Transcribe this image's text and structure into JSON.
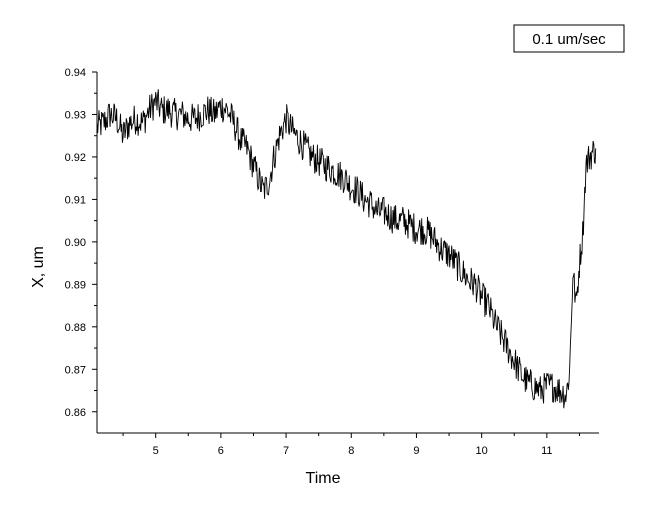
{
  "chart_data": {
    "type": "line",
    "title": "",
    "xlabel": "Time",
    "ylabel": "X, um",
    "xlim": [
      4.1,
      11.8
    ],
    "ylim": [
      0.855,
      0.94
    ],
    "x_ticks": [
      5,
      6,
      7,
      8,
      9,
      10,
      11
    ],
    "x_tick_labels": [
      "5",
      "6",
      "7",
      "8",
      "9",
      "10",
      "11"
    ],
    "y_ticks": [
      0.86,
      0.87,
      0.88,
      0.89,
      0.9,
      0.91,
      0.92,
      0.93,
      0.94
    ],
    "y_tick_labels": [
      "0.86",
      "0.87",
      "0.88",
      "0.89",
      "0.90",
      "0.91",
      "0.92",
      "0.93",
      "0.94"
    ],
    "grid": false,
    "legend": {
      "text": "0.1 um/sec",
      "placement": "top-right"
    },
    "series": [
      {
        "color": "#000000",
        "x": [
          4.1,
          4.2,
          4.3,
          4.4,
          4.5,
          4.6,
          4.7,
          4.8,
          4.9,
          5.0,
          5.1,
          5.2,
          5.3,
          5.4,
          5.5,
          5.6,
          5.7,
          5.8,
          5.9,
          6.0,
          6.1,
          6.2,
          6.3,
          6.4,
          6.5,
          6.6,
          6.65,
          6.7,
          6.75,
          6.8,
          6.9,
          7.0,
          7.1,
          7.2,
          7.3,
          7.4,
          7.5,
          7.6,
          7.7,
          7.8,
          7.9,
          8.0,
          8.1,
          8.2,
          8.3,
          8.4,
          8.5,
          8.6,
          8.7,
          8.8,
          8.9,
          9.0,
          9.1,
          9.2,
          9.3,
          9.4,
          9.5,
          9.6,
          9.7,
          9.8,
          9.9,
          10.0,
          10.1,
          10.2,
          10.3,
          10.4,
          10.5,
          10.6,
          10.7,
          10.8,
          10.9,
          11.0,
          11.1,
          11.2,
          11.3,
          11.35,
          11.4,
          11.45,
          11.5,
          11.55,
          11.6,
          11.65,
          11.7,
          11.75
        ],
        "y": [
          0.927,
          0.928,
          0.93,
          0.929,
          0.925,
          0.928,
          0.929,
          0.928,
          0.931,
          0.933,
          0.931,
          0.931,
          0.93,
          0.93,
          0.929,
          0.929,
          0.93,
          0.931,
          0.93,
          0.932,
          0.931,
          0.928,
          0.924,
          0.922,
          0.918,
          0.914,
          0.912,
          0.913,
          0.915,
          0.919,
          0.925,
          0.929,
          0.926,
          0.924,
          0.922,
          0.92,
          0.919,
          0.918,
          0.917,
          0.916,
          0.915,
          0.913,
          0.912,
          0.91,
          0.909,
          0.907,
          0.907,
          0.906,
          0.905,
          0.905,
          0.904,
          0.903,
          0.903,
          0.902,
          0.9,
          0.898,
          0.897,
          0.895,
          0.893,
          0.891,
          0.89,
          0.887,
          0.885,
          0.881,
          0.878,
          0.875,
          0.872,
          0.869,
          0.867,
          0.866,
          0.865,
          0.866,
          0.866,
          0.865,
          0.864,
          0.87,
          0.893,
          0.885,
          0.895,
          0.902,
          0.918,
          0.92,
          0.921,
          0.922
        ]
      }
    ]
  }
}
